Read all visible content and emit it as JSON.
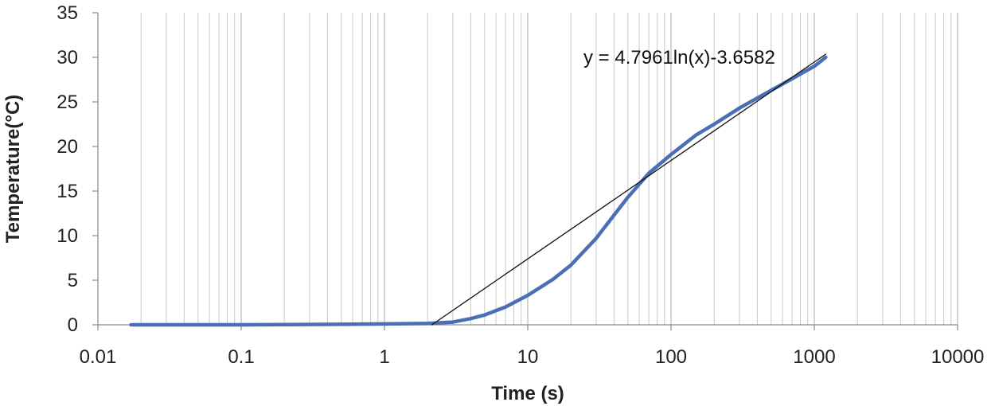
{
  "chart_data": {
    "type": "line",
    "xscale": "log",
    "xlabel": "Time (s)",
    "ylabel": "Temperature(°C)",
    "xlim": [
      0.01,
      10000
    ],
    "ylim": [
      0,
      35
    ],
    "xticks": [
      "0.01",
      "0.1",
      "1",
      "10",
      "100",
      "1000",
      "10000"
    ],
    "yticks": [
      "0",
      "5",
      "10",
      "15",
      "20",
      "25",
      "30",
      "35"
    ],
    "grid": "vertical minor and major (log)",
    "annotation": "y = 4.7961ln(x)-3.6582",
    "series": [
      {
        "style": "thick",
        "color": "#4a6fb5",
        "x": [
          0.017,
          0.03,
          0.1,
          0.5,
          1,
          2,
          3,
          4,
          5,
          7,
          10,
          15,
          20,
          30,
          40,
          50,
          70,
          100,
          150,
          200,
          300,
          500,
          700,
          1000,
          1200
        ],
        "y": [
          0,
          0,
          0,
          0.05,
          0.1,
          0.15,
          0.3,
          0.7,
          1.1,
          2.0,
          3.3,
          5.1,
          6.7,
          9.7,
          12.3,
          14.3,
          17.0,
          19.1,
          21.3,
          22.5,
          24.3,
          26.3,
          27.6,
          29.0,
          30.0
        ]
      },
      {
        "style": "thin",
        "color": "#111111",
        "x": [
          2.14,
          1200
        ],
        "y": [
          0,
          30.35
        ]
      }
    ]
  }
}
